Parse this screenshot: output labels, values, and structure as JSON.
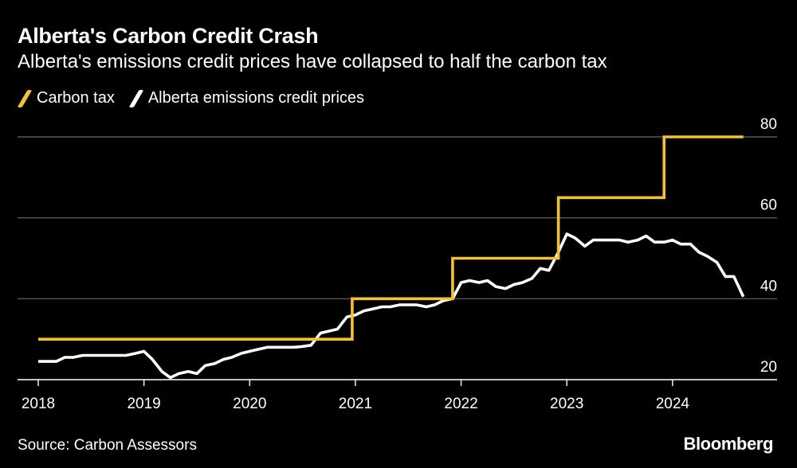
{
  "header": {
    "title": "Alberta's Carbon Credit Crash",
    "subtitle": "Alberta's emissions credit prices have collapsed to half the carbon tax"
  },
  "footer": {
    "source": "Source: Carbon Assessors",
    "brand": "Bloomberg"
  },
  "chart_data": {
    "type": "line",
    "title": "Alberta's Carbon Credit Crash",
    "subtitle": "Alberta's emissions credit prices have collapsed to half the carbon tax",
    "xlim": [
      2018.0,
      2025.2
    ],
    "ylim": [
      20,
      80
    ],
    "x_ticks": [
      2018,
      2019,
      2020,
      2021,
      2022,
      2023,
      2024
    ],
    "x_tick_labels": [
      "2018",
      "2019",
      "2020",
      "2021",
      "2022",
      "2023",
      "2024"
    ],
    "y_ticks": [
      20,
      40,
      60,
      80
    ],
    "y_tick_labels": [
      "20",
      "40",
      "60",
      "80"
    ],
    "grid": "horizontal",
    "legend_position": "top-left",
    "series": [
      {
        "name": "Carbon tax",
        "color": "#F2C230",
        "step": true,
        "points": [
          [
            2018.0,
            30
          ],
          [
            2020.97,
            30
          ],
          [
            2020.97,
            40
          ],
          [
            2021.92,
            40
          ],
          [
            2021.92,
            50
          ],
          [
            2022.92,
            50
          ],
          [
            2022.92,
            65
          ],
          [
            2023.92,
            65
          ],
          [
            2023.92,
            80
          ],
          [
            2024.67,
            80
          ]
        ]
      },
      {
        "name": "Alberta emissions credit prices",
        "color": "#FFFFFF",
        "step": false,
        "points": [
          [
            2018.0,
            24.5
          ],
          [
            2018.08,
            24.5
          ],
          [
            2018.17,
            24.5
          ],
          [
            2018.25,
            25.5
          ],
          [
            2018.33,
            25.5
          ],
          [
            2018.42,
            26
          ],
          [
            2018.5,
            26
          ],
          [
            2018.58,
            26
          ],
          [
            2018.67,
            26
          ],
          [
            2018.75,
            26
          ],
          [
            2018.83,
            26
          ],
          [
            2018.92,
            26.5
          ],
          [
            2019.0,
            27
          ],
          [
            2019.08,
            25
          ],
          [
            2019.17,
            22
          ],
          [
            2019.25,
            20.5
          ],
          [
            2019.33,
            21.5
          ],
          [
            2019.42,
            22
          ],
          [
            2019.5,
            21.5
          ],
          [
            2019.58,
            23.5
          ],
          [
            2019.67,
            24
          ],
          [
            2019.75,
            25
          ],
          [
            2019.83,
            25.5
          ],
          [
            2019.92,
            26.5
          ],
          [
            2020.0,
            27
          ],
          [
            2020.08,
            27.5
          ],
          [
            2020.17,
            28
          ],
          [
            2020.25,
            28
          ],
          [
            2020.33,
            28
          ],
          [
            2020.42,
            28
          ],
          [
            2020.5,
            28.2
          ],
          [
            2020.58,
            28.5
          ],
          [
            2020.67,
            31.5
          ],
          [
            2020.75,
            32
          ],
          [
            2020.83,
            32.5
          ],
          [
            2020.92,
            35.5
          ],
          [
            2021.0,
            36
          ],
          [
            2021.08,
            37
          ],
          [
            2021.17,
            37.5
          ],
          [
            2021.25,
            38
          ],
          [
            2021.33,
            38
          ],
          [
            2021.42,
            38.5
          ],
          [
            2021.5,
            38.5
          ],
          [
            2021.58,
            38.5
          ],
          [
            2021.67,
            38
          ],
          [
            2021.75,
            38.5
          ],
          [
            2021.83,
            39.5
          ],
          [
            2021.92,
            40
          ],
          [
            2022.0,
            44
          ],
          [
            2022.08,
            44.5
          ],
          [
            2022.17,
            44
          ],
          [
            2022.25,
            44.5
          ],
          [
            2022.33,
            43
          ],
          [
            2022.42,
            42.5
          ],
          [
            2022.5,
            43.5
          ],
          [
            2022.58,
            44
          ],
          [
            2022.67,
            45
          ],
          [
            2022.75,
            47.5
          ],
          [
            2022.83,
            47
          ],
          [
            2022.92,
            51.5
          ],
          [
            2023.0,
            56
          ],
          [
            2023.08,
            55
          ],
          [
            2023.17,
            53
          ],
          [
            2023.25,
            54.5
          ],
          [
            2023.33,
            54.5
          ],
          [
            2023.42,
            54.5
          ],
          [
            2023.5,
            54.5
          ],
          [
            2023.58,
            54
          ],
          [
            2023.67,
            54.5
          ],
          [
            2023.75,
            55.5
          ],
          [
            2023.83,
            54
          ],
          [
            2023.92,
            54
          ],
          [
            2024.0,
            54.5
          ],
          [
            2024.08,
            53.5
          ],
          [
            2024.17,
            53.5
          ],
          [
            2024.25,
            51.5
          ],
          [
            2024.33,
            50.5
          ],
          [
            2024.42,
            49
          ],
          [
            2024.5,
            45.5
          ],
          [
            2024.58,
            45.5
          ],
          [
            2024.67,
            40.5
          ]
        ]
      }
    ]
  }
}
